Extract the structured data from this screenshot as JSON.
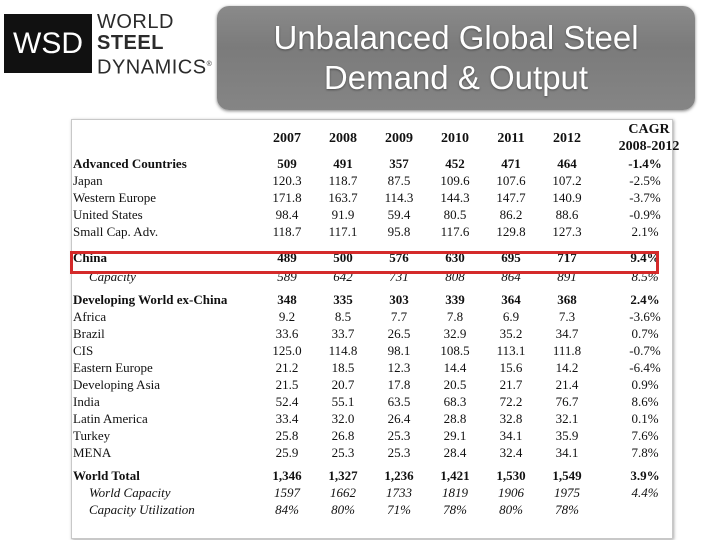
{
  "logo": {
    "abbr": "WSD",
    "line1": "WORLD",
    "line2": "STEEL",
    "line3": "DYNAMICS",
    "mark": "®"
  },
  "title": {
    "line1": "Unbalanced Global Steel",
    "line2": "Demand & Output"
  },
  "table": {
    "headers": [
      "2007",
      "2008",
      "2009",
      "2010",
      "2011",
      "2012"
    ],
    "cagr_header": {
      "line1": "CAGR",
      "line2": "2008-2012"
    },
    "highlight_color": "#d42a2a",
    "rows": [
      {
        "label": "Advanced Countries",
        "values": [
          "509",
          "491",
          "357",
          "452",
          "471",
          "464"
        ],
        "cagr": "-1.4%"
      },
      {
        "label": "Japan",
        "values": [
          "120.3",
          "118.7",
          "87.5",
          "109.6",
          "107.6",
          "107.2"
        ],
        "cagr": "-2.5%"
      },
      {
        "label": "Western Europe",
        "values": [
          "171.8",
          "163.7",
          "114.3",
          "144.3",
          "147.7",
          "140.9"
        ],
        "cagr": "-3.7%"
      },
      {
        "label": "United States",
        "values": [
          "98.4",
          "91.9",
          "59.4",
          "80.5",
          "86.2",
          "88.6"
        ],
        "cagr": "-0.9%"
      },
      {
        "label": "Small Cap. Adv.",
        "values": [
          "118.7",
          "117.1",
          "95.8",
          "117.6",
          "129.8",
          "127.3"
        ],
        "cagr": "2.1%"
      },
      {
        "label": "China",
        "values": [
          "489",
          "500",
          "576",
          "630",
          "695",
          "717"
        ],
        "cagr": "9.4%"
      },
      {
        "label": "Capacity",
        "values": [
          "589",
          "642",
          "731",
          "808",
          "864",
          "891"
        ],
        "cagr": "8.5%"
      },
      {
        "label": "Developing World ex-China",
        "values": [
          "348",
          "335",
          "303",
          "339",
          "364",
          "368"
        ],
        "cagr": "2.4%"
      },
      {
        "label": "Africa",
        "values": [
          "9.2",
          "8.5",
          "7.7",
          "7.8",
          "6.9",
          "7.3"
        ],
        "cagr": "-3.6%"
      },
      {
        "label": "Brazil",
        "values": [
          "33.6",
          "33.7",
          "26.5",
          "32.9",
          "35.2",
          "34.7"
        ],
        "cagr": "0.7%"
      },
      {
        "label": "CIS",
        "values": [
          "125.0",
          "114.8",
          "98.1",
          "108.5",
          "113.1",
          "111.8"
        ],
        "cagr": "-0.7%"
      },
      {
        "label": "Eastern Europe",
        "values": [
          "21.2",
          "18.5",
          "12.3",
          "14.4",
          "15.6",
          "14.2"
        ],
        "cagr": "-6.4%"
      },
      {
        "label": "Developing Asia",
        "values": [
          "21.5",
          "20.7",
          "17.8",
          "20.5",
          "21.7",
          "21.4"
        ],
        "cagr": "0.9%"
      },
      {
        "label": "India",
        "values": [
          "52.4",
          "55.1",
          "63.5",
          "68.3",
          "72.2",
          "76.7"
        ],
        "cagr": "8.6%"
      },
      {
        "label": "Latin America",
        "values": [
          "33.4",
          "32.0",
          "26.4",
          "28.8",
          "32.8",
          "32.1"
        ],
        "cagr": "0.1%"
      },
      {
        "label": "Turkey",
        "values": [
          "25.8",
          "26.8",
          "25.3",
          "29.1",
          "34.1",
          "35.9"
        ],
        "cagr": "7.6%"
      },
      {
        "label": "MENA",
        "values": [
          "25.9",
          "25.3",
          "25.3",
          "28.4",
          "32.4",
          "34.1"
        ],
        "cagr": "7.8%"
      },
      {
        "label": "World Total",
        "values": [
          "1,346",
          "1,327",
          "1,236",
          "1,421",
          "1,530",
          "1,549"
        ],
        "cagr": "3.9%"
      },
      {
        "label": "World Capacity",
        "values": [
          "1597",
          "1662",
          "1733",
          "1819",
          "1906",
          "1975"
        ],
        "cagr": "4.4%"
      },
      {
        "label": "Capacity Utilization",
        "values": [
          "84%",
          "80%",
          "71%",
          "78%",
          "80%",
          "78%"
        ],
        "cagr": ""
      }
    ]
  }
}
